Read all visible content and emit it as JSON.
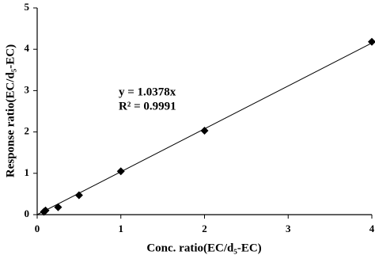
{
  "chart_data": {
    "type": "scatter",
    "x_label": "Conc. ratio(EC/d₅-EC)",
    "y_label": "Response ratio(EC/d₅-EC)",
    "annotations": [
      "y = 1.0378x",
      "R² = 0.9991"
    ],
    "series": [
      {
        "name": null,
        "color": "#000000",
        "x": [
          0.08,
          0.1,
          0.25,
          0.5,
          1,
          2,
          4
        ],
        "values": [
          0.07,
          0.1,
          0.18,
          0.47,
          1.05,
          2.03,
          4.18
        ]
      }
    ],
    "trendline": {
      "slope": 1.0378,
      "color": "#000000"
    },
    "xlim": [
      0,
      4
    ],
    "xticks": [
      0,
      1,
      2,
      3,
      4
    ],
    "ylim": [
      0,
      5
    ],
    "yticks": [
      0,
      1,
      2,
      3,
      4,
      5
    ],
    "grid": false
  }
}
